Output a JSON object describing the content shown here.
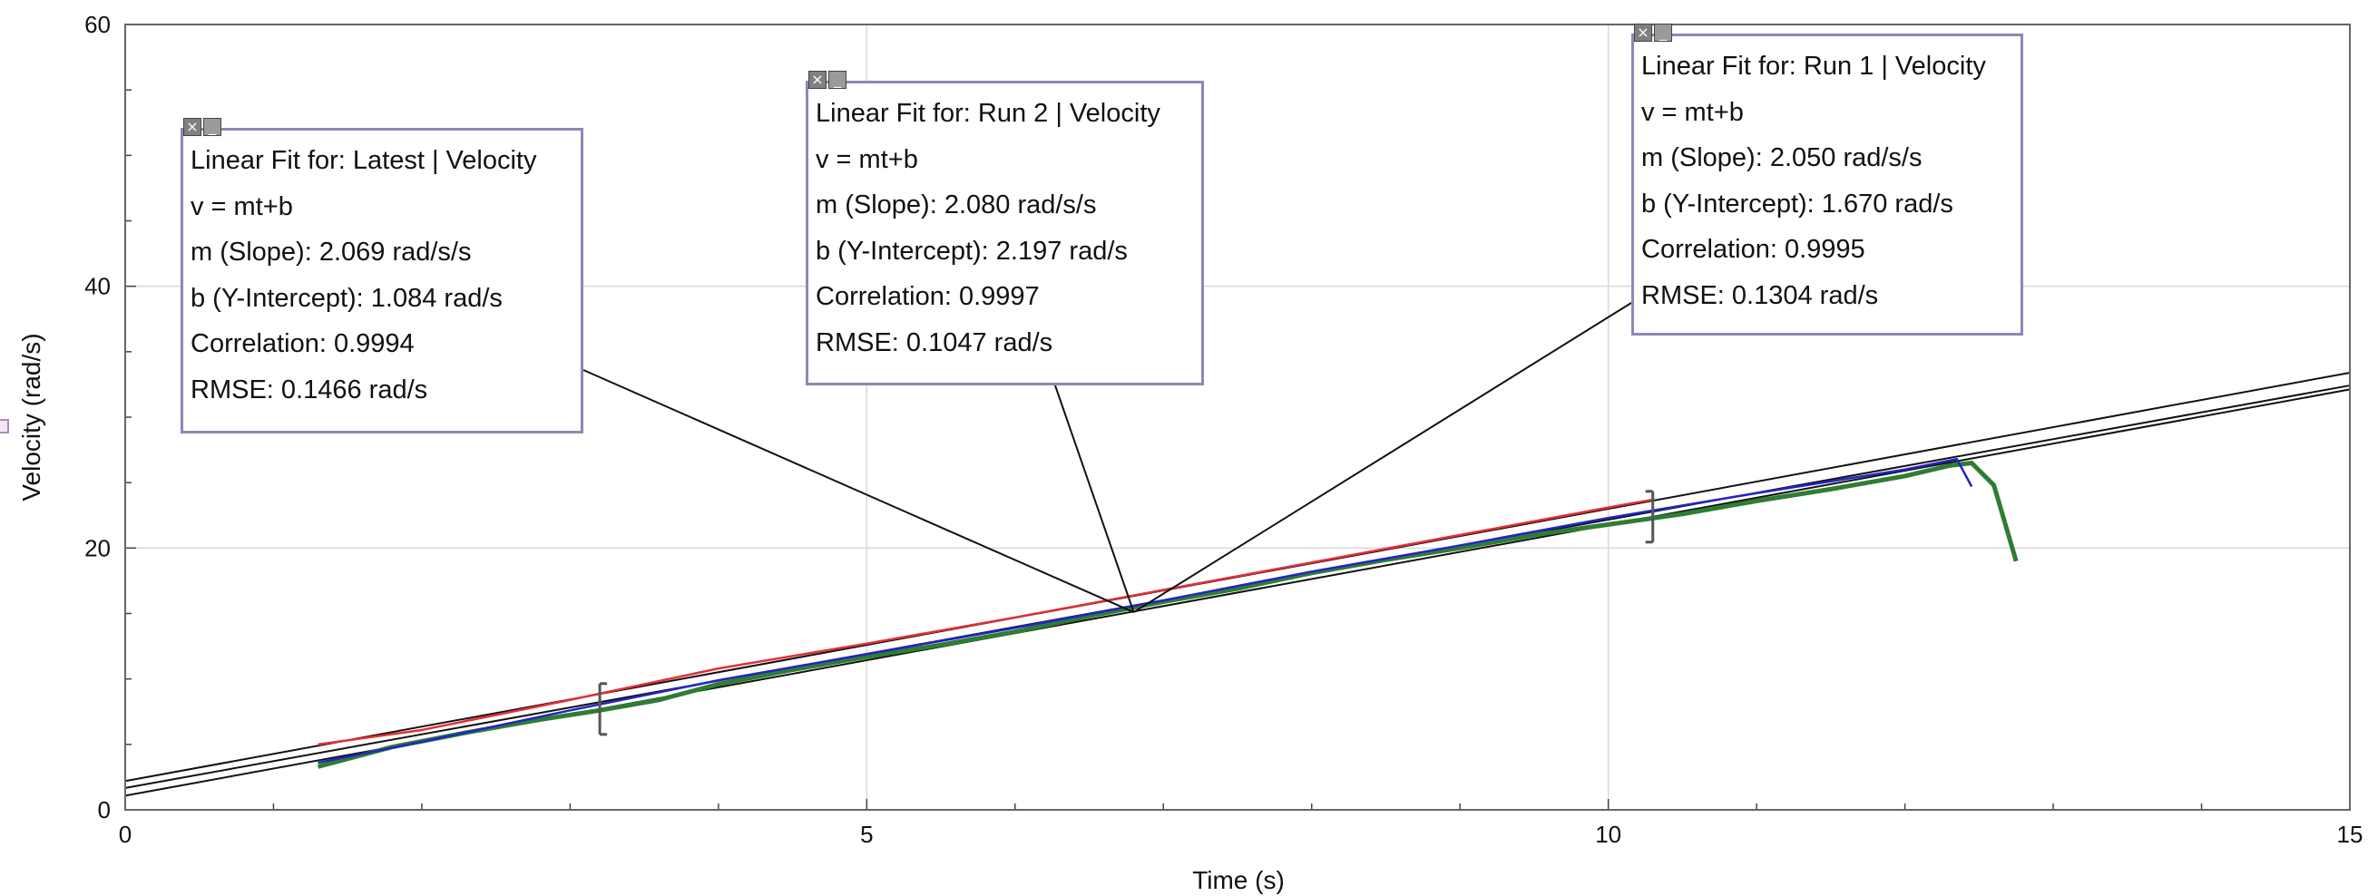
{
  "chart_data": {
    "type": "line",
    "xlabel": "Time (s)",
    "ylabel": "Velocity (rad/s)",
    "xlim": [
      0,
      15
    ],
    "ylim": [
      0,
      60
    ],
    "x_ticks": [
      0,
      5,
      10,
      15
    ],
    "y_ticks": [
      0,
      20,
      40,
      60
    ],
    "grid": true,
    "series": [
      {
        "color": "#2e7d32",
        "x": [
          1.3,
          1.8,
          2.3,
          2.8,
          3.2,
          3.6,
          4.0,
          4.5,
          5.0,
          5.5,
          6.0,
          6.5,
          7.0,
          7.5,
          8.0,
          8.5,
          9.0,
          9.5,
          10.0,
          10.5,
          11.0,
          11.5,
          12.0,
          12.3,
          12.45,
          12.6,
          12.75
        ],
        "y": [
          3.3,
          4.8,
          5.9,
          6.9,
          7.6,
          8.4,
          9.6,
          10.7,
          11.7,
          12.6,
          13.6,
          14.8,
          15.9,
          16.9,
          18.1,
          19.1,
          20.0,
          21.0,
          21.8,
          22.6,
          23.6,
          24.5,
          25.5,
          26.3,
          26.5,
          24.8,
          19.0
        ]
      },
      {
        "color": "#2323c8",
        "x": [
          1.3,
          2.0,
          3.0,
          4.0,
          5.0,
          6.0,
          7.0,
          8.0,
          9.0,
          10.0,
          11.0,
          12.0,
          12.35,
          12.45
        ],
        "y": [
          3.6,
          5.2,
          7.6,
          9.9,
          11.9,
          13.9,
          16.0,
          18.2,
          20.2,
          22.3,
          24.2,
          26.0,
          26.8,
          24.7
        ]
      },
      {
        "color": "#e0303a",
        "x": [
          1.3,
          2.0,
          3.0,
          4.0,
          5.0,
          6.0,
          7.0,
          8.0,
          9.0,
          10.0,
          10.3
        ],
        "y": [
          5.0,
          6.1,
          8.4,
          10.8,
          12.7,
          14.7,
          16.8,
          18.9,
          21.0,
          23.1,
          23.7
        ]
      }
    ],
    "fits": [
      {
        "label": "Latest",
        "slope": 2.069,
        "intercept": 1.084
      },
      {
        "label": "Run 2",
        "slope": 2.08,
        "intercept": 2.197
      },
      {
        "label": "Run 1",
        "slope": 2.05,
        "intercept": 1.67
      }
    ],
    "fit_range": [
      3.2,
      10.3
    ],
    "anchor_point": [
      6.8,
      15.1
    ]
  },
  "fit_boxes": [
    {
      "title": "Linear Fit for: Latest | Velocity",
      "equation": "v = mt+b",
      "slope": "m (Slope): 2.069 rad/s/s",
      "intercept": "b (Y-Intercept): 1.084 rad/s",
      "correlation": "Correlation: 0.9994",
      "rmse": "RMSE: 0.1466 rad/s",
      "close_icon": "close-icon",
      "minimize_icon": "minimize-icon"
    },
    {
      "title": "Linear Fit for: Run 2 | Velocity",
      "equation": "v = mt+b",
      "slope": "m (Slope): 2.080 rad/s/s",
      "intercept": "b (Y-Intercept): 2.197 rad/s",
      "correlation": "Correlation: 0.9997",
      "rmse": "RMSE: 0.1047 rad/s",
      "close_icon": "close-icon",
      "minimize_icon": "minimize-icon"
    },
    {
      "title": "Linear Fit for: Run 1 | Velocity",
      "equation": "v = mt+b",
      "slope": "m (Slope): 2.050 rad/s/s",
      "intercept": "b (Y-Intercept): 1.670 rad/s",
      "correlation": "Correlation: 0.9995",
      "rmse": "RMSE: 0.1304 rad/s",
      "close_icon": "close-icon",
      "minimize_icon": "minimize-icon"
    }
  ]
}
